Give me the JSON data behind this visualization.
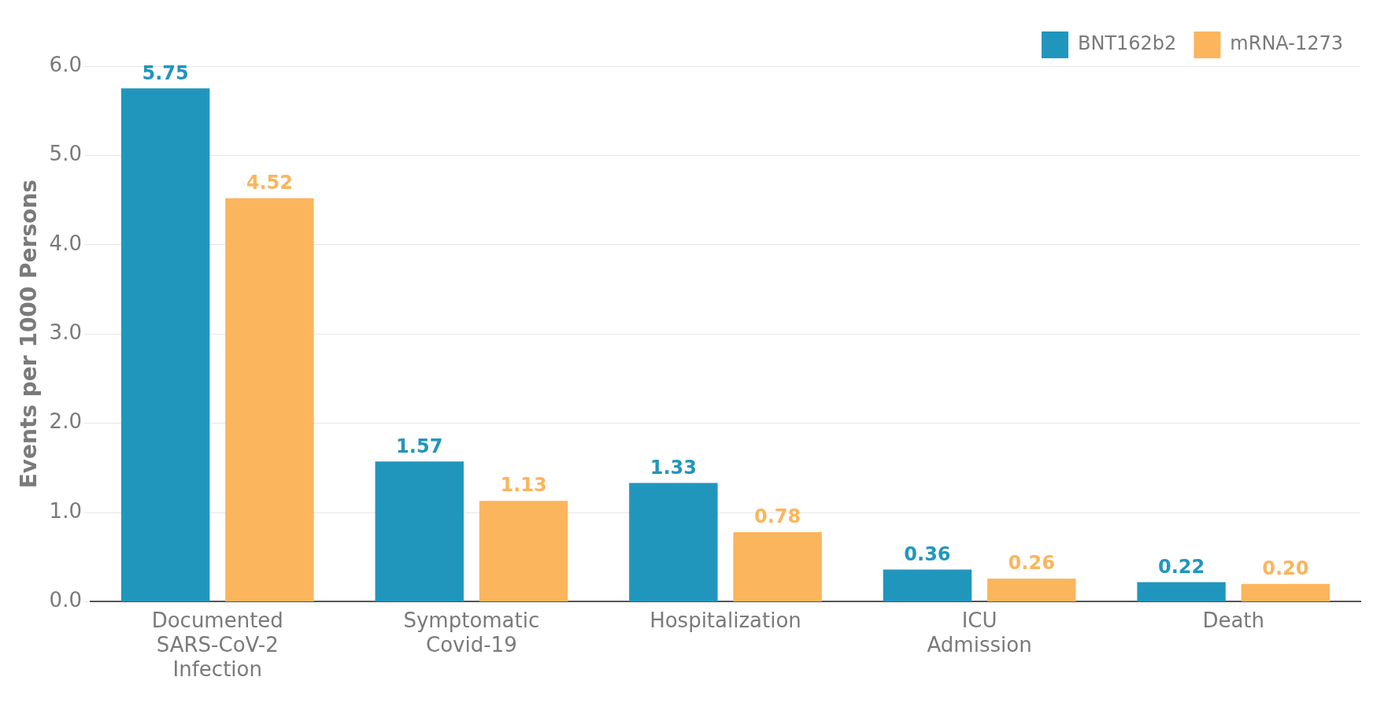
{
  "chart_data": {
    "type": "bar",
    "ylabel": "Events per 1000 Persons",
    "categories": [
      "Documented SARS-CoV-2 Infection",
      "Symptomatic Covid-19",
      "Hospitalization",
      "ICU Admission",
      "Death"
    ],
    "series": [
      {
        "name": "BNT162b2",
        "color": "#2196bd",
        "values": [
          5.75,
          1.57,
          1.33,
          0.36,
          0.22
        ],
        "value_labels": [
          "5.75",
          "1.57",
          "1.33",
          "0.36",
          "0.22"
        ]
      },
      {
        "name": "mRNA-1273",
        "color": "#fbb55c",
        "values": [
          4.52,
          1.13,
          0.78,
          0.26,
          0.2
        ],
        "value_labels": [
          "4.52",
          "1.13",
          "0.78",
          "0.26",
          "0.20"
        ]
      }
    ],
    "ylim": [
      0,
      6
    ],
    "yticks": [
      {
        "value": 0,
        "label": "0.0"
      },
      {
        "value": 1,
        "label": "1.0"
      },
      {
        "value": 2,
        "label": "2.0"
      },
      {
        "value": 3,
        "label": "3.0"
      },
      {
        "value": 4,
        "label": "4.0"
      },
      {
        "value": 5,
        "label": "5.0"
      },
      {
        "value": 6,
        "label": "6.0"
      }
    ],
    "legend": "top right",
    "grid": "y"
  }
}
